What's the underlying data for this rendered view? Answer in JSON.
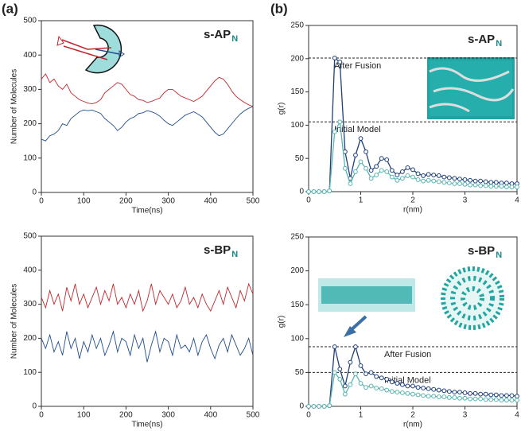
{
  "chart_data": [
    {
      "type": "line",
      "panel_label": "(a)",
      "title": "s-AP",
      "title_subscript": "N",
      "xlabel": "Time(ns)",
      "ylabel": "Number of Molecules",
      "x": [
        0,
        10,
        20,
        30,
        40,
        50,
        60,
        70,
        80,
        90,
        100,
        110,
        120,
        130,
        140,
        150,
        160,
        170,
        180,
        190,
        200,
        210,
        220,
        230,
        240,
        250,
        260,
        270,
        280,
        290,
        300,
        310,
        320,
        330,
        340,
        350,
        360,
        370,
        380,
        390,
        400,
        410,
        420,
        430,
        440,
        450,
        460,
        470,
        480,
        490,
        500
      ],
      "series": [
        {
          "color": "#c0272d",
          "values": [
            330,
            345,
            320,
            330,
            310,
            300,
            315,
            290,
            280,
            270,
            265,
            260,
            258,
            262,
            270,
            290,
            300,
            310,
            320,
            315,
            300,
            285,
            280,
            270,
            268,
            262,
            265,
            270,
            275,
            290,
            300,
            300,
            290,
            280,
            275,
            270,
            265,
            272,
            280,
            295,
            310,
            325,
            335,
            330,
            315,
            295,
            280,
            270,
            262,
            255,
            250
          ]
        },
        {
          "color": "#1f4e8c",
          "values": [
            155,
            150,
            165,
            170,
            180,
            200,
            195,
            215,
            225,
            235,
            240,
            238,
            240,
            235,
            230,
            215,
            205,
            195,
            180,
            190,
            205,
            215,
            220,
            230,
            232,
            238,
            235,
            230,
            222,
            210,
            200,
            195,
            205,
            215,
            225,
            230,
            235,
            228,
            220,
            205,
            190,
            175,
            165,
            170,
            185,
            200,
            215,
            228,
            238,
            245,
            250
          ]
        }
      ],
      "xlim": [
        0,
        500
      ],
      "xticks": [
        0,
        100,
        200,
        300,
        400,
        500
      ],
      "ylim": [
        0,
        500
      ],
      "yticks": [
        0,
        100,
        200,
        300,
        400,
        500
      ]
    },
    {
      "type": "line",
      "panel_label": "(b)",
      "title": "s-AP",
      "title_subscript": "N",
      "xlabel": "r(nm)",
      "ylabel": "g(r)",
      "markers": true,
      "x": [
        0,
        0.1,
        0.2,
        0.3,
        0.4,
        0.5,
        0.6,
        0.7,
        0.8,
        0.9,
        1.0,
        1.1,
        1.2,
        1.3,
        1.4,
        1.5,
        1.6,
        1.7,
        1.8,
        1.9,
        2.0,
        2.1,
        2.2,
        2.3,
        2.4,
        2.5,
        2.6,
        2.7,
        2.8,
        2.9,
        3.0,
        3.1,
        3.2,
        3.3,
        3.4,
        3.5,
        3.6,
        3.7,
        3.8,
        3.9,
        4.0
      ],
      "series": [
        {
          "color": "#1f3f7a",
          "values": [
            0,
            0,
            0,
            0,
            1,
            201,
            195,
            60,
            20,
            55,
            80,
            60,
            32,
            38,
            50,
            48,
            32,
            25,
            30,
            36,
            33,
            27,
            24,
            26,
            25,
            24,
            22,
            21,
            20,
            19,
            18,
            17,
            16,
            16,
            15,
            14,
            14,
            13,
            13,
            12,
            12
          ]
        },
        {
          "color": "#5ab5b0",
          "values": [
            0,
            0,
            0,
            0,
            1,
            90,
            105,
            35,
            12,
            30,
            45,
            35,
            20,
            25,
            32,
            30,
            22,
            17,
            20,
            24,
            22,
            18,
            16,
            17,
            16,
            15,
            14,
            13,
            12,
            12,
            11,
            10,
            10,
            9,
            9,
            8,
            8,
            8,
            7,
            7,
            7
          ]
        }
      ],
      "ref_lines": [
        {
          "value": 201,
          "label": "After Fusion"
        },
        {
          "value": 105,
          "label": "Initial Model"
        }
      ],
      "xlim": [
        0,
        4
      ],
      "xticks": [
        0,
        1,
        2,
        3,
        4
      ],
      "ylim": [
        0,
        250
      ],
      "yticks": [
        0,
        50,
        100,
        150,
        200,
        250
      ]
    },
    {
      "type": "line",
      "title": "s-BP",
      "title_subscript": "N",
      "xlabel": "Time(ns)",
      "ylabel": "Number of Molecules",
      "x": [
        0,
        10,
        20,
        30,
        40,
        50,
        60,
        70,
        80,
        90,
        100,
        110,
        120,
        130,
        140,
        150,
        160,
        170,
        180,
        190,
        200,
        210,
        220,
        230,
        240,
        250,
        260,
        270,
        280,
        290,
        300,
        310,
        320,
        330,
        340,
        350,
        360,
        370,
        380,
        390,
        400,
        410,
        420,
        430,
        440,
        450,
        460,
        470,
        480,
        490,
        500
      ],
      "series": [
        {
          "color": "#c0272d",
          "values": [
            320,
            290,
            340,
            300,
            330,
            280,
            350,
            310,
            360,
            300,
            330,
            290,
            320,
            350,
            300,
            340,
            310,
            360,
            300,
            320,
            290,
            330,
            300,
            340,
            280,
            310,
            360,
            300,
            340,
            320,
            300,
            330,
            290,
            310,
            350,
            300,
            320,
            290,
            330,
            300,
            280,
            310,
            340,
            300,
            350,
            320,
            290,
            340,
            310,
            360,
            330
          ]
        },
        {
          "color": "#1f4e8c",
          "values": [
            200,
            170,
            210,
            160,
            190,
            150,
            220,
            170,
            200,
            140,
            190,
            160,
            210,
            170,
            200,
            150,
            180,
            220,
            160,
            200,
            190,
            150,
            210,
            170,
            200,
            130,
            180,
            220,
            160,
            200,
            190,
            150,
            210,
            170,
            180,
            160,
            200,
            150,
            190,
            210,
            170,
            140,
            180,
            200,
            160,
            210,
            180,
            150,
            170,
            200,
            150
          ]
        }
      ],
      "xlim": [
        0,
        500
      ],
      "xticks": [
        0,
        100,
        200,
        300,
        400,
        500
      ],
      "ylim": [
        0,
        500
      ],
      "yticks": [
        0,
        100,
        200,
        300,
        400,
        500
      ]
    },
    {
      "type": "line",
      "title": "s-BP",
      "title_subscript": "N",
      "xlabel": "r(nm)",
      "ylabel": "g(r)",
      "markers": true,
      "x": [
        0,
        0.1,
        0.2,
        0.3,
        0.4,
        0.5,
        0.6,
        0.7,
        0.8,
        0.9,
        1.0,
        1.1,
        1.2,
        1.3,
        1.4,
        1.5,
        1.6,
        1.7,
        1.8,
        1.9,
        2.0,
        2.1,
        2.2,
        2.3,
        2.4,
        2.5,
        2.6,
        2.7,
        2.8,
        2.9,
        3.0,
        3.1,
        3.2,
        3.3,
        3.4,
        3.5,
        3.6,
        3.7,
        3.8,
        3.9,
        4.0
      ],
      "series": [
        {
          "color": "#1f3f7a",
          "values": [
            0,
            0,
            0,
            0,
            1,
            88,
            55,
            30,
            65,
            88,
            60,
            48,
            50,
            44,
            42,
            40,
            36,
            34,
            32,
            30,
            30,
            28,
            27,
            26,
            25,
            24,
            23,
            22,
            21,
            21,
            20,
            19,
            19,
            18,
            18,
            17,
            17,
            16,
            16,
            16,
            15
          ]
        },
        {
          "color": "#5ab5b0",
          "values": [
            0,
            0,
            0,
            0,
            1,
            50,
            40,
            18,
            32,
            48,
            34,
            28,
            30,
            27,
            26,
            24,
            22,
            21,
            20,
            19,
            18,
            17,
            16,
            15,
            15,
            14,
            14,
            13,
            13,
            12,
            12,
            11,
            11,
            11,
            10,
            10,
            10,
            9,
            9,
            9,
            9
          ]
        }
      ],
      "ref_lines": [
        {
          "value": 88,
          "label": "After Fusion"
        },
        {
          "value": 50,
          "label": "Initial Model"
        }
      ],
      "xlim": [
        0,
        4
      ],
      "xticks": [
        0,
        1,
        2,
        3,
        4
      ],
      "ylim": [
        0,
        250
      ],
      "yticks": [
        0,
        50,
        100,
        150,
        200,
        250
      ]
    }
  ]
}
